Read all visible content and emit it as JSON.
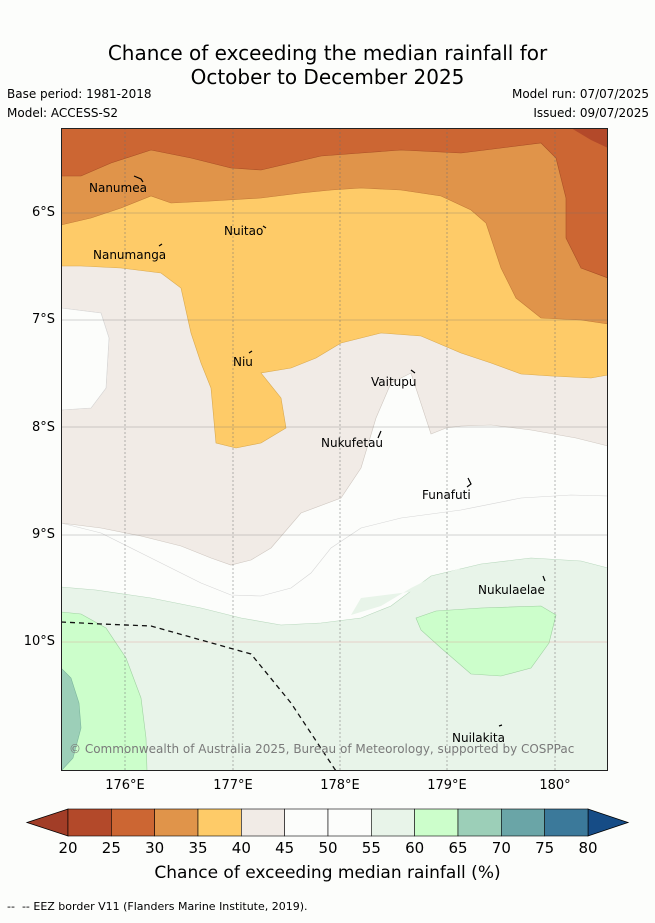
{
  "header": {
    "title_line1": "Chance of exceeding the median rainfall for",
    "title_line2": "October to December 2025",
    "base_period": "Base period: 1981-2018",
    "model": "Model: ACCESS-S2",
    "model_run": "Model run: 07/07/2025",
    "issued": "Issued: 09/07/2025"
  },
  "axes": {
    "lat_labels": [
      "6°S",
      "7°S",
      "8°S",
      "9°S",
      "10°S"
    ],
    "lon_labels": [
      "176°E",
      "177°E",
      "178°E",
      "179°E",
      "180°"
    ]
  },
  "islands": [
    "Nanumea",
    "Nuitao",
    "Nanumanga",
    "Niu",
    "Vaitupu",
    "Nukufetau",
    "Funafuti",
    "Nukulaelae",
    "Nuilakita"
  ],
  "copyright": "© Commonwealth of Australia 2025, Bureau of Meteorology, supported by COSPPac",
  "colorbar": {
    "ticks": [
      "20",
      "25",
      "30",
      "35",
      "40",
      "45",
      "50",
      "55",
      "60",
      "65",
      "70",
      "75",
      "80"
    ],
    "colors": [
      "#b3492a",
      "#cc6633",
      "#e0944a",
      "#fecb68",
      "#f1ebe6",
      "#fcfdfb",
      "#fcfdfb",
      "#e8f4e9",
      "#ccfecb",
      "#9ccfb8",
      "#6aa5a7",
      "#3b799a"
    ],
    "under_color": "#a23d27",
    "over_color": "#164c86",
    "label": "Chance of exceeding median rainfall (%)"
  },
  "legend": {
    "eez_text": "-- EEZ border V11 (Flanders Marine Institute, 2019)."
  }
}
